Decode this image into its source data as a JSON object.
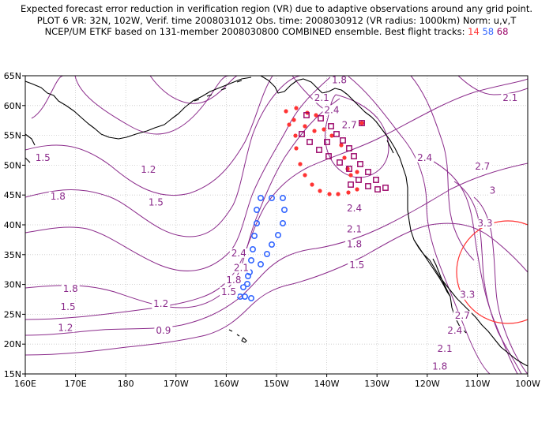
{
  "title": {
    "line1": "Expected forecast error reduction in verification region (VR) due to adaptive observations around any grid point.",
    "line2": "PLOT 6 VR: 32N, 102W, Verif. time 2008031012 Obs. time: 2008030912 (VR radius: 1000km) Norm: u,v,T",
    "line3_prefix": "NCEP/UM ETKF based on 131-member 2008030800 COMBINED ensemble.  Best flight tracks:",
    "track_14": "14",
    "track_58": "58",
    "track_68": "68"
  },
  "colors": {
    "contour": "#8b2b8b",
    "coast": "#000000",
    "grid": "#bdbdbd",
    "track_14": "#ff3333",
    "track_58": "#3366ff",
    "track_68": "#990066",
    "verification_circle": "#ff3333"
  },
  "axes": {
    "x_ticks": [
      "160E",
      "170E",
      "180",
      "170W",
      "160W",
      "150W",
      "140W",
      "130W",
      "120W",
      "110W",
      "100W"
    ],
    "y_ticks": [
      "15N",
      "20N",
      "25N",
      "30N",
      "35N",
      "40N",
      "45N",
      "50N",
      "55N",
      "60N",
      "65N"
    ],
    "lon_range": [
      160,
      260
    ],
    "lat_range": [
      15,
      65
    ]
  },
  "contour_labels": [
    {
      "text": "1.8",
      "lon": 222.5,
      "lat": 64.0
    },
    {
      "text": "2.1",
      "lon": 219.0,
      "lat": 61.0
    },
    {
      "text": "2.1",
      "lon": 256.5,
      "lat": 61.0
    },
    {
      "text": "2.4",
      "lon": 221.0,
      "lat": 59.0
    },
    {
      "text": "2.7",
      "lon": 224.5,
      "lat": 56.5
    },
    {
      "text": "1.5",
      "lon": 163.5,
      "lat": 51.0
    },
    {
      "text": "1.2",
      "lon": 184.5,
      "lat": 49.0
    },
    {
      "text": "2.4",
      "lon": 239.5,
      "lat": 51.0
    },
    {
      "text": "2.7",
      "lon": 251.0,
      "lat": 49.5
    },
    {
      "text": "3",
      "lon": 253.0,
      "lat": 45.5
    },
    {
      "text": "1.8",
      "lon": 166.5,
      "lat": 44.5
    },
    {
      "text": "1.5",
      "lon": 186.0,
      "lat": 43.5
    },
    {
      "text": "2.4",
      "lon": 225.5,
      "lat": 42.5
    },
    {
      "text": "3.3",
      "lon": 251.5,
      "lat": 40.0
    },
    {
      "text": "2.1",
      "lon": 225.5,
      "lat": 39.0
    },
    {
      "text": "1.8",
      "lon": 225.5,
      "lat": 36.5
    },
    {
      "text": "2.4",
      "lon": 202.5,
      "lat": 35.0
    },
    {
      "text": "1.5",
      "lon": 226.0,
      "lat": 33.0
    },
    {
      "text": "2.1",
      "lon": 203.0,
      "lat": 32.5
    },
    {
      "text": "1.8",
      "lon": 201.5,
      "lat": 30.5
    },
    {
      "text": "1.8",
      "lon": 169.0,
      "lat": 29.0
    },
    {
      "text": "1.5",
      "lon": 200.5,
      "lat": 28.5
    },
    {
      "text": "3.3",
      "lon": 248.0,
      "lat": 28.0
    },
    {
      "text": "1.5",
      "lon": 168.5,
      "lat": 26.0
    },
    {
      "text": "1.2",
      "lon": 187.0,
      "lat": 26.5
    },
    {
      "text": "2.7",
      "lon": 247.0,
      "lat": 24.5
    },
    {
      "text": "1.2",
      "lon": 168.0,
      "lat": 22.5
    },
    {
      "text": "0.9",
      "lon": 187.5,
      "lat": 22.0
    },
    {
      "text": "2.4",
      "lon": 245.5,
      "lat": 22.0
    },
    {
      "text": "2.1",
      "lon": 243.5,
      "lat": 19.0
    },
    {
      "text": "1.8",
      "lon": 242.5,
      "lat": 16.0
    }
  ],
  "verification_region": {
    "lat": 32,
    "lon": 258,
    "radius_km": 1000
  }
}
